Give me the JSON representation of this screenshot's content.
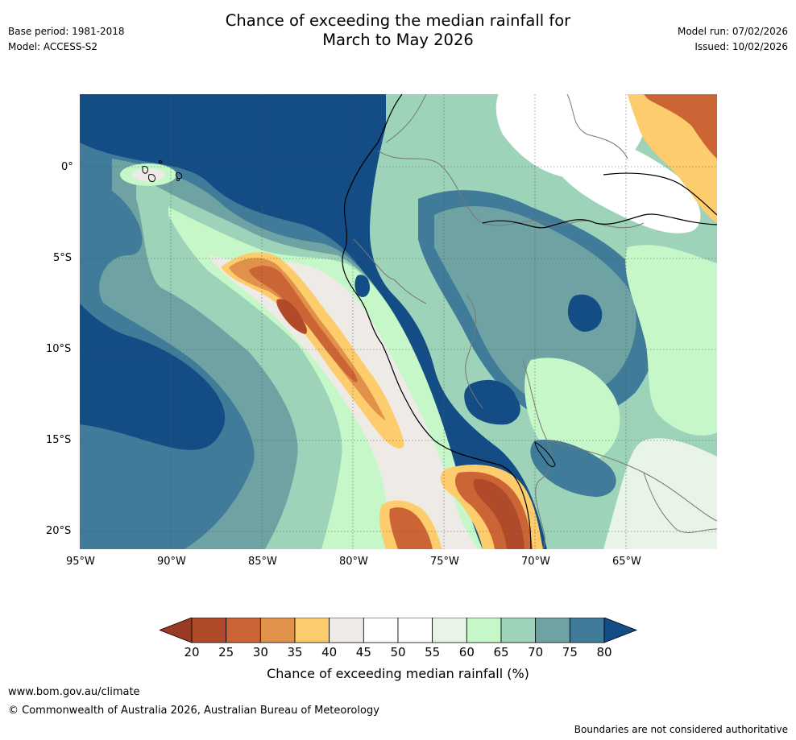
{
  "header": {
    "title_line1": "Chance of exceeding the median rainfall for",
    "title_line2": "March to May 2026",
    "base_period": "Base period: 1981-2018",
    "model": "Model: ACCESS-S2",
    "model_run": "Model run: 07/02/2026",
    "issued": "Issued: 10/02/2026"
  },
  "map": {
    "lat_labels": [
      "0°",
      "5°S",
      "10°S",
      "15°S",
      "20°S"
    ],
    "lon_labels": [
      "95°W",
      "90°W",
      "85°W",
      "80°W",
      "75°W",
      "70°W",
      "65°W"
    ]
  },
  "colorbar": {
    "ticks": [
      "20",
      "25",
      "30",
      "35",
      "40",
      "45",
      "50",
      "55",
      "60",
      "65",
      "70",
      "75",
      "80"
    ],
    "colors": [
      "#b04a2a",
      "#cc6535",
      "#e0914a",
      "#fdcc6c",
      "#eeebe6",
      "#ffffff",
      "#ffffff",
      "#e8f4e8",
      "#c6f7c8",
      "#9dd3b8",
      "#6fa3a3",
      "#407b99"
    ],
    "under_color": "#9a3a22",
    "over_color": "#144d86",
    "label": "Chance of exceeding median rainfall (%)"
  },
  "footer": {
    "url": "www.bom.gov.au/climate",
    "copyright": "© Commonwealth of Australia 2026, Australian Bureau of Meteorology",
    "disclaimer": "Boundaries are not considered authoritative"
  }
}
